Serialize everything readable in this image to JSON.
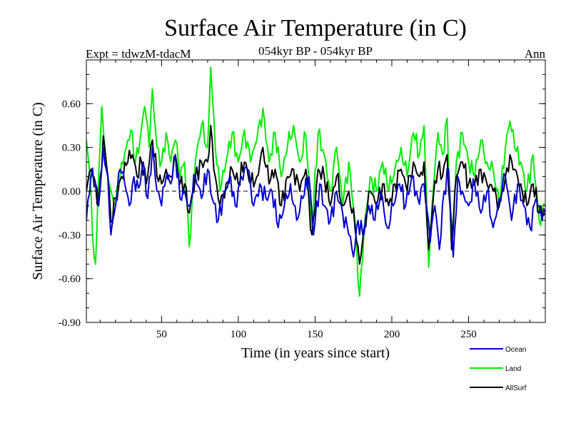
{
  "chart_data": {
    "type": "line",
    "title": "Surface Air Temperature (in C)",
    "subtitle": "054kyr BP - 054kyr BP",
    "experiment_label": "Expt = tdwzM-tdacM",
    "season_label": "Ann",
    "xlabel": "Time (in years since start)",
    "ylabel": "Surface Air Temperature (in C)",
    "xlim": [
      1,
      300
    ],
    "ylim": [
      -0.9,
      0.9
    ],
    "x_ticks": [
      50,
      100,
      150,
      200,
      250
    ],
    "x_tick_labels": [
      "50",
      "100",
      "150",
      "200",
      "250"
    ],
    "y_ticks": [
      -0.9,
      -0.6,
      -0.3,
      0.0,
      0.3,
      0.6
    ],
    "y_tick_labels": [
      "-0.90",
      "-0.60",
      "-0.30",
      "0.00",
      "0.30",
      "0.60"
    ],
    "zero_line": "dashed",
    "legend_position": "below-right",
    "series": [
      {
        "name": "Ocean",
        "color": "#0000cc",
        "anchors": [
          [
            1,
            -0.2
          ],
          [
            4,
            0.1
          ],
          [
            7,
            0.05
          ],
          [
            9,
            -0.1
          ],
          [
            12,
            0.3
          ],
          [
            15,
            0.1
          ],
          [
            17,
            -0.3
          ],
          [
            20,
            -0.1
          ],
          [
            23,
            0.15
          ],
          [
            26,
            0.05
          ],
          [
            29,
            -0.1
          ],
          [
            32,
            0.1
          ],
          [
            35,
            0.02
          ],
          [
            38,
            0.2
          ],
          [
            41,
            -0.05
          ],
          [
            44,
            0.3
          ],
          [
            47,
            0.0
          ],
          [
            50,
            -0.1
          ],
          [
            53,
            0.1
          ],
          [
            56,
            0.05
          ],
          [
            59,
            0.25
          ],
          [
            62,
            -0.05
          ],
          [
            65,
            0.0
          ],
          [
            68,
            -0.1
          ],
          [
            72,
            0.1
          ],
          [
            76,
            -0.05
          ],
          [
            80,
            0.15
          ],
          [
            83,
            -0.05
          ],
          [
            87,
            -0.2
          ],
          [
            91,
            0.0
          ],
          [
            95,
            0.1
          ],
          [
            98,
            -0.1
          ],
          [
            102,
            0.1
          ],
          [
            106,
            0.15
          ],
          [
            110,
            -0.1
          ],
          [
            114,
            0.05
          ],
          [
            118,
            -0.05
          ],
          [
            122,
            0.0
          ],
          [
            126,
            -0.25
          ],
          [
            130,
            -0.1
          ],
          [
            134,
            0.05
          ],
          [
            138,
            -0.2
          ],
          [
            142,
            -0.05
          ],
          [
            146,
            0.1
          ],
          [
            149,
            -0.3
          ],
          [
            153,
            0.05
          ],
          [
            156,
            -0.1
          ],
          [
            160,
            -0.2
          ],
          [
            164,
            0.0
          ],
          [
            168,
            -0.15
          ],
          [
            172,
            -0.3
          ],
          [
            175,
            -0.45
          ],
          [
            178,
            -0.2
          ],
          [
            181,
            -0.3
          ],
          [
            185,
            -0.1
          ],
          [
            189,
            -0.2
          ],
          [
            193,
            0.0
          ],
          [
            197,
            -0.25
          ],
          [
            201,
            -0.1
          ],
          [
            205,
            0.05
          ],
          [
            209,
            -0.1
          ],
          [
            213,
            0.1
          ],
          [
            217,
            -0.05
          ],
          [
            221,
            0.05
          ],
          [
            225,
            -0.35
          ],
          [
            228,
            -0.1
          ],
          [
            231,
            -0.4
          ],
          [
            234,
            0.0
          ],
          [
            237,
            0.15
          ],
          [
            240,
            -0.45
          ],
          [
            243,
            0.1
          ],
          [
            246,
            0.0
          ],
          [
            250,
            -0.1
          ],
          [
            254,
            0.05
          ],
          [
            258,
            -0.15
          ],
          [
            262,
            0.0
          ],
          [
            266,
            -0.25
          ],
          [
            270,
            -0.05
          ],
          [
            274,
            0.1
          ],
          [
            278,
            -0.2
          ],
          [
            282,
            0.05
          ],
          [
            286,
            -0.1
          ],
          [
            290,
            -0.25
          ],
          [
            294,
            -0.05
          ],
          [
            298,
            -0.2
          ],
          [
            300,
            -0.15
          ]
        ]
      },
      {
        "name": "Land",
        "color": "#00ee00",
        "anchors": [
          [
            1,
            0.35
          ],
          [
            3,
            0.15
          ],
          [
            5,
            -0.3
          ],
          [
            7,
            -0.5
          ],
          [
            9,
            0.1
          ],
          [
            11,
            0.58
          ],
          [
            14,
            0.2
          ],
          [
            17,
            0.0
          ],
          [
            20,
            -0.1
          ],
          [
            24,
            0.2
          ],
          [
            27,
            0.3
          ],
          [
            30,
            0.42
          ],
          [
            33,
            0.2
          ],
          [
            36,
            0.35
          ],
          [
            39,
            0.58
          ],
          [
            42,
            0.3
          ],
          [
            44,
            0.7
          ],
          [
            47,
            0.3
          ],
          [
            50,
            0.2
          ],
          [
            53,
            0.4
          ],
          [
            56,
            0.2
          ],
          [
            59,
            0.35
          ],
          [
            62,
            0.1
          ],
          [
            65,
            0.2
          ],
          [
            68,
            -0.38
          ],
          [
            72,
            0.2
          ],
          [
            76,
            0.45
          ],
          [
            80,
            0.3
          ],
          [
            82,
            0.85
          ],
          [
            85,
            0.3
          ],
          [
            88,
            0.0
          ],
          [
            92,
            0.2
          ],
          [
            96,
            0.4
          ],
          [
            100,
            0.2
          ],
          [
            104,
            0.42
          ],
          [
            108,
            0.2
          ],
          [
            112,
            0.35
          ],
          [
            116,
            0.57
          ],
          [
            120,
            0.2
          ],
          [
            124,
            0.4
          ],
          [
            128,
            0.1
          ],
          [
            132,
            0.3
          ],
          [
            136,
            0.45
          ],
          [
            140,
            0.2
          ],
          [
            144,
            0.38
          ],
          [
            148,
            -0.25
          ],
          [
            152,
            0.4
          ],
          [
            156,
            0.25
          ],
          [
            160,
            0.0
          ],
          [
            164,
            0.3
          ],
          [
            168,
            -0.1
          ],
          [
            172,
            0.2
          ],
          [
            176,
            -0.2
          ],
          [
            179,
            -0.72
          ],
          [
            182,
            -0.25
          ],
          [
            186,
            0.1
          ],
          [
            190,
            0.0
          ],
          [
            194,
            0.2
          ],
          [
            198,
            0.0
          ],
          [
            202,
            0.15
          ],
          [
            206,
            0.3
          ],
          [
            210,
            0.1
          ],
          [
            214,
            0.4
          ],
          [
            218,
            0.25
          ],
          [
            221,
            0.45
          ],
          [
            224,
            -0.52
          ],
          [
            227,
            0.0
          ],
          [
            230,
            0.4
          ],
          [
            233,
            0.25
          ],
          [
            236,
            0.5
          ],
          [
            239,
            -0.4
          ],
          [
            242,
            0.2
          ],
          [
            246,
            0.4
          ],
          [
            250,
            0.2
          ],
          [
            254,
            0.1
          ],
          [
            258,
            0.35
          ],
          [
            262,
            0.2
          ],
          [
            266,
            0.15
          ],
          [
            270,
            -0.1
          ],
          [
            274,
            0.3
          ],
          [
            277,
            0.48
          ],
          [
            280,
            0.3
          ],
          [
            284,
            0.2
          ],
          [
            288,
            0.0
          ],
          [
            292,
            0.25
          ],
          [
            296,
            -0.2
          ],
          [
            300,
            -0.1
          ]
        ]
      },
      {
        "name": "AllSurf",
        "color": "#000000",
        "anchors": [
          [
            1,
            0.0
          ],
          [
            4,
            0.15
          ],
          [
            7,
            0.05
          ],
          [
            9,
            -0.1
          ],
          [
            12,
            0.38
          ],
          [
            15,
            0.1
          ],
          [
            17,
            -0.2
          ],
          [
            20,
            -0.05
          ],
          [
            24,
            0.1
          ],
          [
            28,
            0.2
          ],
          [
            31,
            0.25
          ],
          [
            34,
            0.1
          ],
          [
            37,
            0.2
          ],
          [
            40,
            0.05
          ],
          [
            44,
            0.35
          ],
          [
            47,
            0.1
          ],
          [
            50,
            0.05
          ],
          [
            53,
            0.15
          ],
          [
            56,
            0.1
          ],
          [
            59,
            0.25
          ],
          [
            62,
            0.05
          ],
          [
            65,
            0.05
          ],
          [
            68,
            -0.15
          ],
          [
            72,
            0.1
          ],
          [
            76,
            0.2
          ],
          [
            80,
            0.2
          ],
          [
            82,
            0.45
          ],
          [
            85,
            0.1
          ],
          [
            88,
            -0.1
          ],
          [
            92,
            0.05
          ],
          [
            96,
            0.15
          ],
          [
            100,
            0.05
          ],
          [
            104,
            0.2
          ],
          [
            108,
            0.05
          ],
          [
            112,
            0.1
          ],
          [
            116,
            0.3
          ],
          [
            120,
            0.05
          ],
          [
            124,
            0.15
          ],
          [
            128,
            -0.1
          ],
          [
            132,
            0.1
          ],
          [
            136,
            0.15
          ],
          [
            140,
            0.0
          ],
          [
            144,
            0.15
          ],
          [
            148,
            -0.3
          ],
          [
            152,
            0.15
          ],
          [
            156,
            0.1
          ],
          [
            160,
            -0.1
          ],
          [
            164,
            0.1
          ],
          [
            168,
            -0.1
          ],
          [
            172,
            0.0
          ],
          [
            176,
            -0.25
          ],
          [
            179,
            -0.5
          ],
          [
            182,
            -0.25
          ],
          [
            186,
            0.0
          ],
          [
            190,
            -0.1
          ],
          [
            194,
            0.05
          ],
          [
            198,
            -0.1
          ],
          [
            202,
            0.05
          ],
          [
            206,
            0.15
          ],
          [
            210,
            0.0
          ],
          [
            214,
            0.2
          ],
          [
            218,
            0.1
          ],
          [
            221,
            0.2
          ],
          [
            224,
            -0.4
          ],
          [
            227,
            -0.05
          ],
          [
            230,
            0.15
          ],
          [
            233,
            0.1
          ],
          [
            236,
            0.25
          ],
          [
            239,
            -0.4
          ],
          [
            242,
            0.1
          ],
          [
            246,
            0.2
          ],
          [
            250,
            0.05
          ],
          [
            254,
            0.05
          ],
          [
            258,
            0.15
          ],
          [
            262,
            0.05
          ],
          [
            266,
            0.0
          ],
          [
            270,
            -0.1
          ],
          [
            274,
            0.1
          ],
          [
            277,
            0.25
          ],
          [
            280,
            0.15
          ],
          [
            284,
            0.05
          ],
          [
            288,
            -0.1
          ],
          [
            292,
            0.05
          ],
          [
            296,
            -0.15
          ],
          [
            300,
            -0.15
          ]
        ]
      }
    ]
  }
}
